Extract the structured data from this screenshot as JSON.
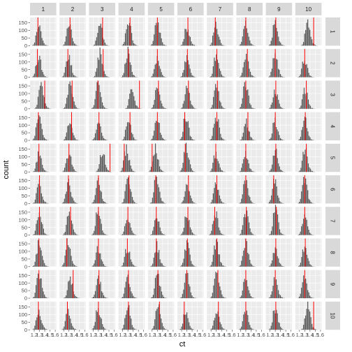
{
  "chart_data": {
    "type": "bar",
    "subtype": "faceted histogram grid with vertical reference lines",
    "xlabel": "ct",
    "ylabel": "count",
    "facet_columns": [
      "1",
      "2",
      "3",
      "4",
      "5",
      "6",
      "7",
      "8",
      "9",
      "10"
    ],
    "facet_rows": [
      "1",
      "2",
      "3",
      "4",
      "5",
      "6",
      "7",
      "8",
      "9",
      "10"
    ],
    "x_ticks": [
      "1.2",
      "1.3",
      "1.4",
      "1.5",
      "1.6"
    ],
    "y_ticks": [
      "0",
      "50",
      "100",
      "150"
    ],
    "ylim": [
      0,
      185
    ],
    "grid": true,
    "colors": {
      "panel_background": "#ebebeb",
      "grid_line": "#ffffff",
      "strip_background": "#d9d9d9",
      "bar_fill": "#595959",
      "reference_line": "#ff0000"
    },
    "reference_lines": [
      [
        1.27,
        1.32,
        1.38,
        1.34,
        1.3,
        1.32,
        1.28,
        1.3,
        1.31,
        1.47
      ],
      [
        1.26,
        1.28,
        1.39,
        1.31,
        1.3,
        1.31,
        1.31,
        1.33,
        1.3,
        1.3
      ],
      [
        1.4,
        1.36,
        1.29,
        1.52,
        1.32,
        1.33,
        1.32,
        1.3,
        1.31,
        1.33
      ],
      [
        1.28,
        1.35,
        1.31,
        1.34,
        1.3,
        1.26,
        1.31,
        1.34,
        1.3,
        1.31
      ],
      [
        1.29,
        1.3,
        1.52,
        1.23,
        1.2,
        1.27,
        1.29,
        1.3,
        1.31,
        1.33
      ],
      [
        1.3,
        1.29,
        1.3,
        1.32,
        1.27,
        1.33,
        1.31,
        1.3,
        1.27,
        1.3
      ],
      [
        1.3,
        1.33,
        1.3,
        1.3,
        1.28,
        1.32,
        1.27,
        1.31,
        1.32,
        1.3
      ],
      [
        1.29,
        1.26,
        1.3,
        1.29,
        1.28,
        1.31,
        1.31,
        1.3,
        1.31,
        1.31
      ],
      [
        1.29,
        1.38,
        1.31,
        1.31,
        1.31,
        1.3,
        1.33,
        1.3,
        1.3,
        1.3
      ],
      [
        1.28,
        1.27,
        1.3,
        1.31,
        1.34,
        1.25,
        1.34,
        1.3,
        1.31,
        1.47
      ]
    ],
    "histogram_shape": {
      "bin_starts": [
        1.15,
        1.17,
        1.19,
        1.21,
        1.23,
        1.25,
        1.27,
        1.29,
        1.31,
        1.33,
        1.35,
        1.37,
        1.39,
        1.41,
        1.43,
        1.45,
        1.47,
        1.49
      ],
      "bin_width": 0.02,
      "typical_counts": [
        0,
        3,
        10,
        30,
        70,
        120,
        150,
        160,
        140,
        110,
        70,
        40,
        20,
        10,
        5,
        2,
        1,
        0
      ],
      "note": "Per-panel counts vary; approximately bell-shaped centred near 1.30 with peaks between about 90 and 170."
    }
  }
}
